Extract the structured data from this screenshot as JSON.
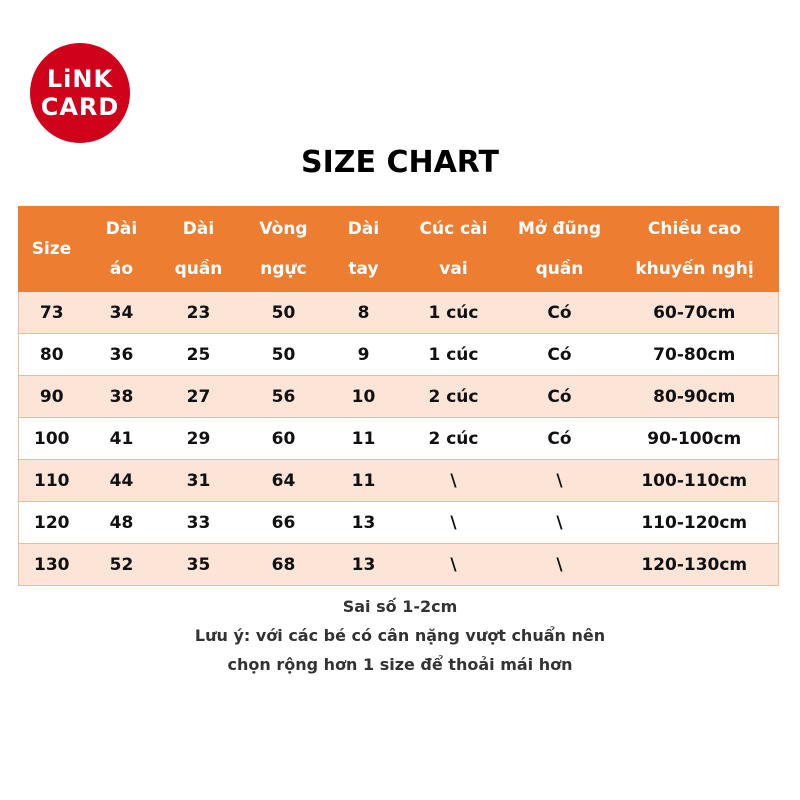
{
  "logo": {
    "line1": "LiNK",
    "line2": "CARD"
  },
  "title": "SIZE CHART",
  "table": {
    "headers": [
      [
        "Size",
        ""
      ],
      [
        "Dài",
        "áo"
      ],
      [
        "Dài",
        "quần"
      ],
      [
        "Vòng",
        "ngực"
      ],
      [
        "Dài",
        "tay"
      ],
      [
        "Cúc cài",
        "vai"
      ],
      [
        "Mở đũng",
        "quần"
      ],
      [
        "Chiều cao",
        "khuyến nghị"
      ]
    ],
    "rows": [
      [
        "73",
        "34",
        "23",
        "50",
        "8",
        "1 cúc",
        "Có",
        "60-70cm"
      ],
      [
        "80",
        "36",
        "25",
        "50",
        "9",
        "1 cúc",
        "Có",
        "70-80cm"
      ],
      [
        "90",
        "38",
        "27",
        "56",
        "10",
        "2 cúc",
        "Có",
        "80-90cm"
      ],
      [
        "100",
        "41",
        "29",
        "60",
        "11",
        "2 cúc",
        "Có",
        "90-100cm"
      ],
      [
        "110",
        "44",
        "31",
        "64",
        "11",
        "\\",
        "\\",
        "100-110cm"
      ],
      [
        "120",
        "48",
        "33",
        "66",
        "13",
        "\\",
        "\\",
        "110-120cm"
      ],
      [
        "130",
        "52",
        "35",
        "68",
        "13",
        "\\",
        "\\",
        "120-130cm"
      ]
    ]
  },
  "notes": [
    "Sai số 1-2cm",
    "Lưu ý: với các bé có cân nặng vượt chuẩn nên",
    "chọn rộng hơn 1 size để thoải mái hơn"
  ],
  "colors": {
    "header": "#ed7d31",
    "row_alt": "#fce4d6",
    "logo": "#d0021b"
  }
}
